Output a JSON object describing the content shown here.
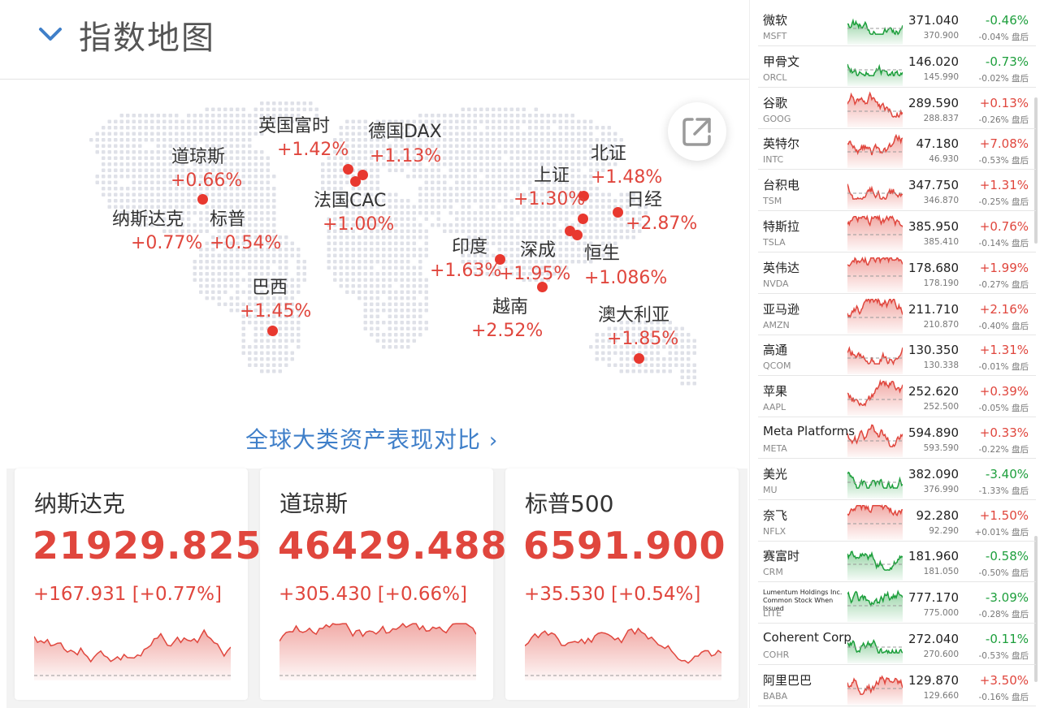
{
  "header": {
    "title": "指数地图"
  },
  "markets": [
    {
      "name": "英国富时",
      "change": "+1.42%"
    },
    {
      "name": "德国DAX",
      "change": "+1.13%"
    },
    {
      "name": "道琼斯",
      "change": "+0.66%"
    },
    {
      "name": "北证",
      "change": "+1.48%"
    },
    {
      "name": "上证",
      "change": "+1.30%"
    },
    {
      "name": "日经",
      "change": "+2.87%"
    },
    {
      "name": "法国CAC",
      "change": "+1.00%"
    },
    {
      "name": "纳斯达克",
      "change": "+0.77%"
    },
    {
      "name": "标普",
      "change": "+0.54%"
    },
    {
      "name": "印度",
      "change": "+1.63%"
    },
    {
      "name": "深成",
      "change": "+1.95%"
    },
    {
      "name": "恒生",
      "change": "+1.086%"
    },
    {
      "name": "巴西",
      "change": "+1.45%"
    },
    {
      "name": "越南",
      "change": "+2.52%"
    },
    {
      "name": "澳大利亚",
      "change": "+1.85%"
    }
  ],
  "compare_link": "全球大类资产表现对比",
  "compare_chevron": "›",
  "cards": [
    {
      "name": "纳斯达克",
      "price": "21929.825",
      "change": "+167.931 [+0.77%]"
    },
    {
      "name": "道琼斯",
      "price": "46429.488",
      "change": "+305.430 [+0.66%]"
    },
    {
      "name": "标普500",
      "price": "6591.900",
      "change": "+35.530 [+0.54%]"
    }
  ],
  "colors": {
    "up": "#e0463d",
    "down": "#1d9f3c",
    "link": "#3f7fc9"
  },
  "stocks": [
    {
      "name": "微软",
      "ticker": "MSFT",
      "price": "371.040",
      "pct": "-0.46%",
      "after": "370.900",
      "after_pct": "-0.04% 盘后",
      "dir": "down"
    },
    {
      "name": "甲骨文",
      "ticker": "ORCL",
      "price": "146.020",
      "pct": "-0.73%",
      "after": "145.990",
      "after_pct": "-0.02% 盘后",
      "dir": "down"
    },
    {
      "name": "谷歌",
      "ticker": "GOOG",
      "price": "289.590",
      "pct": "+0.13%",
      "after": "288.837",
      "after_pct": "-0.26% 盘后",
      "dir": "up"
    },
    {
      "name": "英特尔",
      "ticker": "INTC",
      "price": "47.180",
      "pct": "+7.08%",
      "after": "46.930",
      "after_pct": "-0.53% 盘后",
      "dir": "up"
    },
    {
      "name": "台积电",
      "ticker": "TSM",
      "price": "347.750",
      "pct": "+1.31%",
      "after": "346.870",
      "after_pct": "-0.25% 盘后",
      "dir": "up"
    },
    {
      "name": "特斯拉",
      "ticker": "TSLA",
      "price": "385.950",
      "pct": "+0.76%",
      "after": "385.410",
      "after_pct": "-0.14% 盘后",
      "dir": "up"
    },
    {
      "name": "英伟达",
      "ticker": "NVDA",
      "price": "178.680",
      "pct": "+1.99%",
      "after": "178.190",
      "after_pct": "-0.27% 盘后",
      "dir": "up"
    },
    {
      "name": "亚马逊",
      "ticker": "AMZN",
      "price": "211.710",
      "pct": "+2.16%",
      "after": "210.870",
      "after_pct": "-0.40% 盘后",
      "dir": "up"
    },
    {
      "name": "高通",
      "ticker": "QCOM",
      "price": "130.350",
      "pct": "+1.31%",
      "after": "130.338",
      "after_pct": "-0.01% 盘后",
      "dir": "up"
    },
    {
      "name": "苹果",
      "ticker": "AAPL",
      "price": "252.620",
      "pct": "+0.39%",
      "after": "252.500",
      "after_pct": "-0.05% 盘后",
      "dir": "up"
    },
    {
      "name": "Meta Platforms",
      "ticker": "META",
      "price": "594.890",
      "pct": "+0.33%",
      "after": "593.590",
      "after_pct": "-0.22% 盘后",
      "dir": "up"
    },
    {
      "name": "美光",
      "ticker": "MU",
      "price": "382.090",
      "pct": "-3.40%",
      "after": "376.990",
      "after_pct": "-1.33% 盘后",
      "dir": "down"
    },
    {
      "name": "奈飞",
      "ticker": "NFLX",
      "price": "92.280",
      "pct": "+1.50%",
      "after": "92.290",
      "after_pct": "+0.01% 盘后",
      "dir": "up"
    },
    {
      "name": "赛富时",
      "ticker": "CRM",
      "price": "181.960",
      "pct": "-0.58%",
      "after": "181.050",
      "after_pct": "-0.50% 盘后",
      "dir": "down"
    },
    {
      "name": "Lumentum Holdings Inc. Common Stock When Issued",
      "ticker": "LITE",
      "price": "777.170",
      "pct": "-3.09%",
      "after": "775.000",
      "after_pct": "-0.28% 盘后",
      "dir": "down",
      "small": true
    },
    {
      "name": "Coherent Corp",
      "ticker": "COHR",
      "price": "272.040",
      "pct": "-0.11%",
      "after": "270.600",
      "after_pct": "-0.53% 盘后",
      "dir": "down"
    },
    {
      "name": "阿里巴巴",
      "ticker": "BABA",
      "price": "129.870",
      "pct": "+3.50%",
      "after": "129.660",
      "after_pct": "-0.16% 盘后",
      "dir": "up"
    }
  ]
}
